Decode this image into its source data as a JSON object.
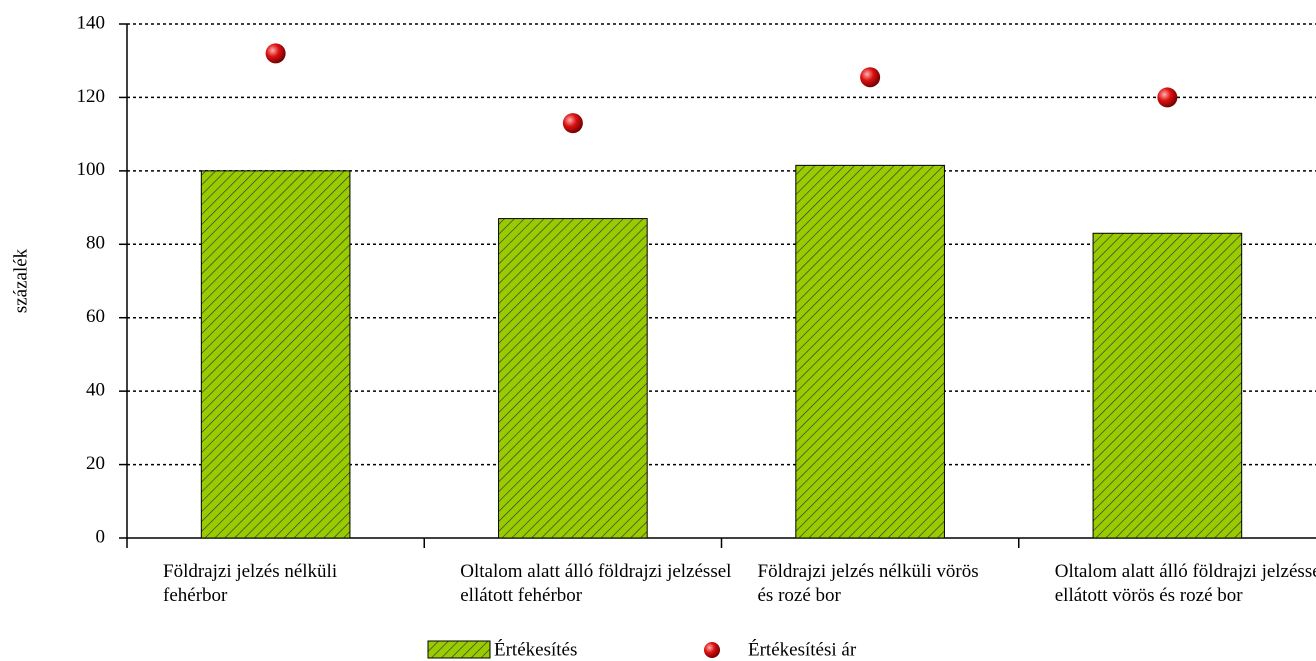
{
  "chart_data": {
    "type": "bar",
    "y_label": "százalék",
    "categories": [
      "Földrajzi jelzés nélküli fehérbor",
      "Oltalom alatt álló földrajzi jelzéssel ellátott fehérbor",
      "Földrajzi jelzés nélküli vörös és rozé bor",
      "Oltalom alatt álló földrajzi jelzéssel ellátott vörös és rozé bor"
    ],
    "series": [
      {
        "name": "Értékesítés",
        "type": "bar",
        "color": "#99cc00",
        "values": [
          100,
          87,
          101.5,
          83
        ]
      },
      {
        "name": "Értékesítési ár",
        "type": "scatter",
        "color": "#dd1111",
        "values": [
          132,
          113,
          125.5,
          120
        ]
      }
    ],
    "ylim": [
      0,
      140
    ],
    "yticks": [
      0,
      20,
      40,
      60,
      80,
      100,
      120,
      140
    ],
    "grid": true,
    "legend": "bottom"
  }
}
